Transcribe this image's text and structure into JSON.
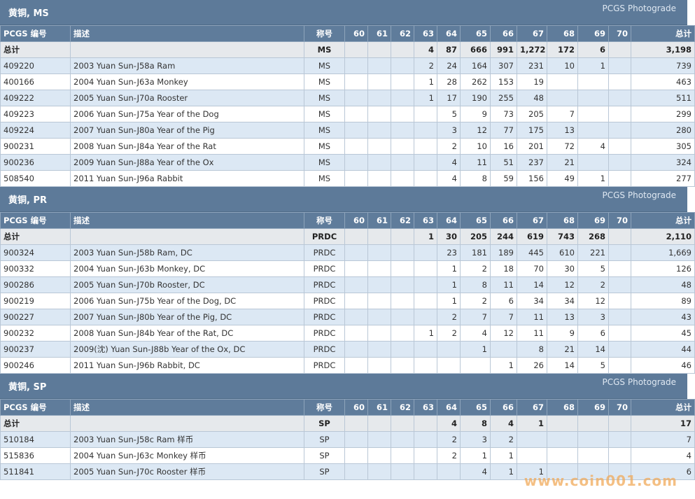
{
  "columns": [
    "PCGS 编号",
    "描述",
    "称号",
    "60",
    "61",
    "62",
    "63",
    "64",
    "65",
    "66",
    "67",
    "68",
    "69",
    "70",
    "总计"
  ],
  "link_label": "PCGS Photograde",
  "sections": [
    {
      "title": "黄铜, MS",
      "total": {
        "label": "总计",
        "designation": "MS",
        "grades": [
          "",
          "",
          "",
          "4",
          "87",
          "666",
          "991",
          "1,272",
          "172",
          "6",
          ""
        ],
        "total": "3,198"
      },
      "rows": [
        {
          "pcgs": "409220",
          "desc": "2003 Yuan Sun-J58a Ram",
          "designation": "MS",
          "grades": [
            "",
            "",
            "",
            "2",
            "24",
            "164",
            "307",
            "231",
            "10",
            "1",
            ""
          ],
          "total": "739"
        },
        {
          "pcgs": "400166",
          "desc": "2004 Yuan Sun-J63a Monkey",
          "designation": "MS",
          "grades": [
            "",
            "",
            "",
            "1",
            "28",
            "262",
            "153",
            "19",
            "",
            "",
            ""
          ],
          "total": "463"
        },
        {
          "pcgs": "409222",
          "desc": "2005 Yuan Sun-J70a Rooster",
          "designation": "MS",
          "grades": [
            "",
            "",
            "",
            "1",
            "17",
            "190",
            "255",
            "48",
            "",
            "",
            ""
          ],
          "total": "511"
        },
        {
          "pcgs": "409223",
          "desc": "2006 Yuan Sun-J75a Year of the Dog",
          "designation": "MS",
          "grades": [
            "",
            "",
            "",
            "",
            "5",
            "9",
            "73",
            "205",
            "7",
            "",
            ""
          ],
          "total": "299"
        },
        {
          "pcgs": "409224",
          "desc": "2007 Yuan Sun-J80a Year of the Pig",
          "designation": "MS",
          "grades": [
            "",
            "",
            "",
            "",
            "3",
            "12",
            "77",
            "175",
            "13",
            "",
            ""
          ],
          "total": "280"
        },
        {
          "pcgs": "900231",
          "desc": "2008 Yuan Sun-J84a Year of the Rat",
          "designation": "MS",
          "grades": [
            "",
            "",
            "",
            "",
            "2",
            "10",
            "16",
            "201",
            "72",
            "4",
            ""
          ],
          "total": "305"
        },
        {
          "pcgs": "900236",
          "desc": "2009 Yuan Sun-J88a Year of the Ox",
          "designation": "MS",
          "grades": [
            "",
            "",
            "",
            "",
            "4",
            "11",
            "51",
            "237",
            "21",
            "",
            ""
          ],
          "total": "324"
        },
        {
          "pcgs": "508540",
          "desc": "2011 Yuan Sun-J96a Rabbit",
          "designation": "MS",
          "grades": [
            "",
            "",
            "",
            "",
            "4",
            "8",
            "59",
            "156",
            "49",
            "1",
            ""
          ],
          "total": "277"
        }
      ]
    },
    {
      "title": "黄铜, PR",
      "total": {
        "label": "总计",
        "designation": "PRDC",
        "grades": [
          "",
          "",
          "",
          "1",
          "30",
          "205",
          "244",
          "619",
          "743",
          "268",
          ""
        ],
        "total": "2,110"
      },
      "rows": [
        {
          "pcgs": "900324",
          "desc": "2003 Yuan Sun-J58b Ram, DC",
          "designation": "PRDC",
          "grades": [
            "",
            "",
            "",
            "",
            "23",
            "181",
            "189",
            "445",
            "610",
            "221",
            ""
          ],
          "total": "1,669"
        },
        {
          "pcgs": "900332",
          "desc": "2004 Yuan Sun-J63b Monkey, DC",
          "designation": "PRDC",
          "grades": [
            "",
            "",
            "",
            "",
            "1",
            "2",
            "18",
            "70",
            "30",
            "5",
            ""
          ],
          "total": "126"
        },
        {
          "pcgs": "900286",
          "desc": "2005 Yuan Sun-J70b Rooster, DC",
          "designation": "PRDC",
          "grades": [
            "",
            "",
            "",
            "",
            "1",
            "8",
            "11",
            "14",
            "12",
            "2",
            ""
          ],
          "total": "48"
        },
        {
          "pcgs": "900219",
          "desc": "2006 Yuan Sun-J75b Year of the Dog, DC",
          "designation": "PRDC",
          "grades": [
            "",
            "",
            "",
            "",
            "1",
            "2",
            "6",
            "34",
            "34",
            "12",
            ""
          ],
          "total": "89"
        },
        {
          "pcgs": "900227",
          "desc": "2007 Yuan Sun-J80b Year of the Pig, DC",
          "designation": "PRDC",
          "grades": [
            "",
            "",
            "",
            "",
            "2",
            "7",
            "7",
            "11",
            "13",
            "3",
            ""
          ],
          "total": "43"
        },
        {
          "pcgs": "900232",
          "desc": "2008 Yuan Sun-J84b Year of the Rat, DC",
          "designation": "PRDC",
          "grades": [
            "",
            "",
            "",
            "1",
            "2",
            "4",
            "12",
            "11",
            "9",
            "6",
            ""
          ],
          "total": "45"
        },
        {
          "pcgs": "900237",
          "desc": "2009(沈) Yuan Sun-J88b Year of the Ox, DC",
          "designation": "PRDC",
          "grades": [
            "",
            "",
            "",
            "",
            "",
            "1",
            "",
            "8",
            "21",
            "14",
            ""
          ],
          "total": "44"
        },
        {
          "pcgs": "900246",
          "desc": "2011 Yuan Sun-J96b Rabbit, DC",
          "designation": "PRDC",
          "grades": [
            "",
            "",
            "",
            "",
            "",
            "",
            "1",
            "26",
            "14",
            "5",
            ""
          ],
          "total": "46"
        }
      ]
    },
    {
      "title": "黄铜, SP",
      "total": {
        "label": "总计",
        "designation": "SP",
        "grades": [
          "",
          "",
          "",
          "",
          "4",
          "8",
          "4",
          "1",
          "",
          "",
          ""
        ],
        "total": "17"
      },
      "rows": [
        {
          "pcgs": "510184",
          "desc": "2003 Yuan Sun-J58c Ram 样币",
          "designation": "SP",
          "grades": [
            "",
            "",
            "",
            "",
            "2",
            "3",
            "2",
            "",
            "",
            "",
            ""
          ],
          "total": "7"
        },
        {
          "pcgs": "515836",
          "desc": "2004 Yuan Sun-J63c Monkey 样币",
          "designation": "SP",
          "grades": [
            "",
            "",
            "",
            "",
            "2",
            "1",
            "1",
            "",
            "",
            "",
            ""
          ],
          "total": "4"
        },
        {
          "pcgs": "511841",
          "desc": "2005 Yuan Sun-J70c Rooster 样币",
          "designation": "SP",
          "grades": [
            "",
            "",
            "",
            "",
            "",
            "4",
            "1",
            "1",
            "",
            "",
            ""
          ],
          "total": "6"
        }
      ]
    }
  ],
  "watermark": "www.coin001.com"
}
